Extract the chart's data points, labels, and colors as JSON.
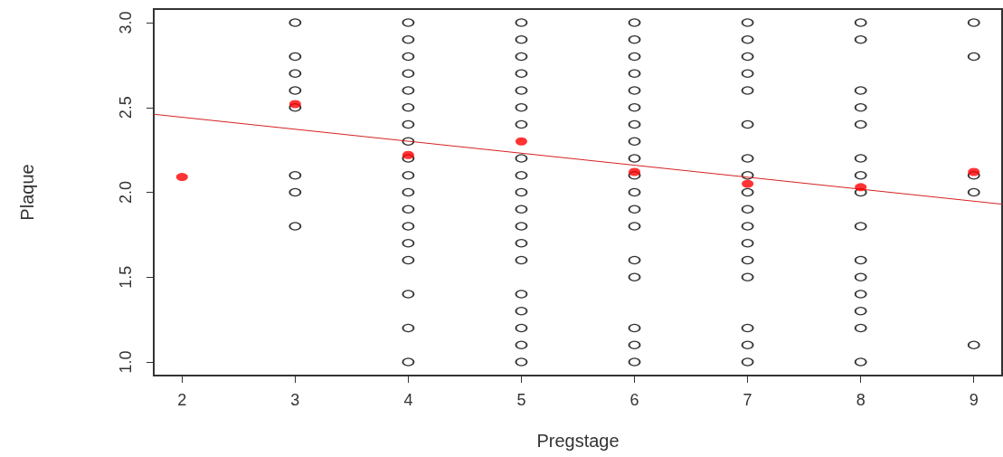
{
  "chart_data": {
    "type": "scatter",
    "xlabel": "Pregstage",
    "ylabel": "Plaque",
    "marker": "circle",
    "grid": false,
    "xlim": [
      1.75,
      9.25
    ],
    "ylim": [
      0.92,
      3.08
    ],
    "xticks": [
      2,
      3,
      4,
      5,
      6,
      7,
      8,
      9
    ],
    "yticks": [
      {
        "value": 1,
        "label": "1.0"
      },
      {
        "value": 1.5,
        "label": "1.5"
      },
      {
        "value": 2,
        "label": "2.0"
      },
      {
        "value": 2.5,
        "label": "2.5"
      },
      {
        "value": 3,
        "label": "3.0"
      }
    ],
    "series": [
      {
        "color": "#000000",
        "x": [
          3,
          3,
          3,
          3,
          3,
          3,
          3,
          3,
          4,
          4,
          4,
          4,
          4,
          4,
          4,
          4,
          4,
          4,
          4,
          4,
          4,
          4,
          4,
          4,
          4,
          4,
          5,
          5,
          5,
          5,
          5,
          5,
          5,
          5,
          5,
          5,
          5,
          5,
          5,
          5,
          5,
          5,
          5,
          5,
          5,
          6,
          6,
          6,
          6,
          6,
          6,
          6,
          6,
          6,
          6,
          6,
          6,
          6,
          6,
          6,
          6,
          6,
          6,
          7,
          7,
          7,
          7,
          7,
          7,
          7,
          7,
          7,
          7,
          7,
          7,
          7,
          7,
          7,
          7,
          7,
          8,
          8,
          8,
          8,
          8,
          8,
          8,
          8,
          8,
          8,
          8,
          8,
          8,
          8,
          8,
          9,
          9,
          9,
          9,
          9
        ],
        "values": [
          3.0,
          2.8,
          2.7,
          2.6,
          2.5,
          2.1,
          2.0,
          1.8,
          3.0,
          2.9,
          2.8,
          2.7,
          2.6,
          2.5,
          2.4,
          2.3,
          2.2,
          2.1,
          2.0,
          1.9,
          1.8,
          1.7,
          1.6,
          1.4,
          1.2,
          1.0,
          3.0,
          2.9,
          2.8,
          2.7,
          2.6,
          2.5,
          2.4,
          2.2,
          2.1,
          2.0,
          1.9,
          1.8,
          1.7,
          1.6,
          1.4,
          1.3,
          1.2,
          1.1,
          1.0,
          3.0,
          2.9,
          2.8,
          2.7,
          2.6,
          2.5,
          2.4,
          2.3,
          2.2,
          2.1,
          2.0,
          1.9,
          1.8,
          1.6,
          1.5,
          1.2,
          1.1,
          1.0,
          3.0,
          2.9,
          2.8,
          2.7,
          2.6,
          2.4,
          2.2,
          2.1,
          2.0,
          1.9,
          1.8,
          1.7,
          1.6,
          1.5,
          1.2,
          1.1,
          1.0,
          3.0,
          2.9,
          2.6,
          2.5,
          2.4,
          2.2,
          2.1,
          2.0,
          1.8,
          1.6,
          1.5,
          1.4,
          1.3,
          1.2,
          1.0,
          3.0,
          2.8,
          2.1,
          2.0,
          1.1
        ]
      },
      {
        "color": "#ff0000",
        "x": [
          2,
          3,
          4,
          5,
          6,
          7,
          8,
          9
        ],
        "values": [
          2.09,
          2.52,
          2.22,
          2.3,
          2.12,
          2.05,
          2.03,
          2.12
        ]
      },
      {
        "type": "line",
        "marker": "none",
        "color": "#d62020",
        "x": [
          1.75,
          9.25
        ],
        "values": [
          2.46,
          1.93
        ]
      }
    ]
  }
}
